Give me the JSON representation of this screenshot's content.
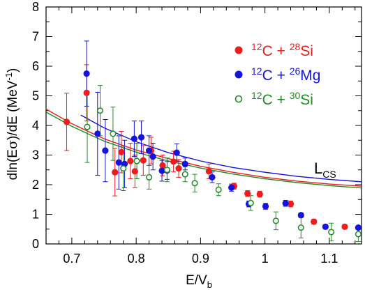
{
  "chart_data": {
    "type": "scatter",
    "xlabel": {
      "main": "E/V",
      "sub": "b"
    },
    "ylabel": {
      "prefix": "dln(E",
      "sigma": "σ",
      "mid": ")/dE  (MeV",
      "sup": "-1",
      "suffix": ")"
    },
    "xlim": [
      0.66,
      1.15
    ],
    "ylim": [
      0,
      8
    ],
    "x_ticks": [
      "0.7",
      "0.8",
      "0.9",
      "1",
      "1.1"
    ],
    "x_tick_values": [
      0.7,
      0.8,
      0.9,
      1.0,
      1.1
    ],
    "y_ticks": [
      "0",
      "1",
      "2",
      "3",
      "4",
      "5",
      "6",
      "7",
      "8"
    ],
    "y_tick_values": [
      0,
      1,
      2,
      3,
      4,
      5,
      6,
      7,
      8
    ],
    "legend_position": "upper-right",
    "series": [
      {
        "name": "12C + 28Si",
        "legend": {
          "m1": "12",
          "a": "C + ",
          "m2": "28",
          "b": "Si"
        },
        "color": "#ee1c1c",
        "marker": "filled-circle",
        "points": [
          {
            "x": 0.692,
            "y": 4.12,
            "err": 0.97
          },
          {
            "x": 0.723,
            "y": 5.1,
            "err": 0.95
          },
          {
            "x": 0.767,
            "y": 2.42,
            "err": 0.8
          },
          {
            "x": 0.777,
            "y": 3.1,
            "err": 0.7
          },
          {
            "x": 0.791,
            "y": 2.8,
            "err": 0.6
          },
          {
            "x": 0.798,
            "y": 2.45,
            "err": 0.55
          },
          {
            "x": 0.811,
            "y": 2.82,
            "err": 0.5
          },
          {
            "x": 0.823,
            "y": 3.15,
            "err": 0.45
          },
          {
            "x": 0.841,
            "y": 2.65,
            "err": 0.35
          },
          {
            "x": 0.858,
            "y": 2.78,
            "err": 0.35
          },
          {
            "x": 0.866,
            "y": 2.55,
            "err": 0.3
          },
          {
            "x": 0.913,
            "y": 2.45,
            "err": 0.25
          },
          {
            "x": 0.952,
            "y": 1.95,
            "err": 0.1
          },
          {
            "x": 0.973,
            "y": 1.7,
            "err": 0.1
          },
          {
            "x": 0.992,
            "y": 1.68,
            "err": 0.1
          },
          {
            "x": 1.04,
            "y": 1.35,
            "err": 0.1
          },
          {
            "x": 1.076,
            "y": 0.75,
            "err": 0.08
          },
          {
            "x": 1.124,
            "y": 0.58,
            "err": 0.07
          }
        ]
      },
      {
        "name": "12C + 26Mg",
        "legend": {
          "m1": "12",
          "a": "C + ",
          "m2": "26",
          "b": "Mg"
        },
        "color": "#1414dc",
        "marker": "filled-circle",
        "points": [
          {
            "x": 0.723,
            "y": 5.75,
            "err": 1.1
          },
          {
            "x": 0.74,
            "y": 3.72,
            "err": 1.4
          },
          {
            "x": 0.752,
            "y": 3.15,
            "err": 1.05
          },
          {
            "x": 0.773,
            "y": 2.75,
            "err": 0.9
          },
          {
            "x": 0.782,
            "y": 2.7,
            "err": 0.8
          },
          {
            "x": 0.797,
            "y": 3.55,
            "err": 0.6
          },
          {
            "x": 0.808,
            "y": 3.6,
            "err": 0.55
          },
          {
            "x": 0.82,
            "y": 3.15,
            "err": 0.5
          },
          {
            "x": 0.826,
            "y": 2.95,
            "err": 0.45
          },
          {
            "x": 0.84,
            "y": 2.47,
            "err": 0.35
          },
          {
            "x": 0.848,
            "y": 2.48,
            "err": 0.3
          },
          {
            "x": 0.863,
            "y": 3.08,
            "err": 0.3
          },
          {
            "x": 0.876,
            "y": 2.7,
            "err": 0.2
          },
          {
            "x": 0.918,
            "y": 2.25,
            "err": 0.18
          },
          {
            "x": 0.948,
            "y": 1.9,
            "err": 0.12
          },
          {
            "x": 0.975,
            "y": 1.35,
            "err": 0.1
          },
          {
            "x": 1.001,
            "y": 1.27,
            "err": 0.1
          },
          {
            "x": 1.032,
            "y": 1.37,
            "err": 0.1
          },
          {
            "x": 1.056,
            "y": 0.97,
            "err": 0.08
          },
          {
            "x": 1.094,
            "y": 0.58,
            "err": 0.07
          },
          {
            "x": 1.145,
            "y": 0.55,
            "err": 0.06
          }
        ]
      },
      {
        "name": "12C + 30Si",
        "legend": {
          "m1": "12",
          "a": "C + ",
          "m2": "30",
          "b": "Si"
        },
        "color": "#1e8c1e",
        "marker": "open-circle",
        "points": [
          {
            "x": 0.724,
            "y": 3.95,
            "err": 1.2
          },
          {
            "x": 0.744,
            "y": 4.5,
            "err": 0.85
          },
          {
            "x": 0.764,
            "y": 3.72,
            "err": 0.9
          },
          {
            "x": 0.78,
            "y": 2.55,
            "err": 0.75
          },
          {
            "x": 0.801,
            "y": 2.8,
            "err": 0.6
          },
          {
            "x": 0.82,
            "y": 2.25,
            "err": 0.4
          },
          {
            "x": 0.848,
            "y": 2.5,
            "err": 0.4
          },
          {
            "x": 0.876,
            "y": 2.35,
            "err": 0.25
          },
          {
            "x": 0.891,
            "y": 2.05,
            "err": 0.3
          },
          {
            "x": 0.928,
            "y": 1.83,
            "err": 0.2
          },
          {
            "x": 0.978,
            "y": 1.38,
            "err": 0.25
          },
          {
            "x": 1.017,
            "y": 0.78,
            "err": 0.3
          },
          {
            "x": 1.056,
            "y": 0.55,
            "err": 0.35
          },
          {
            "x": 1.103,
            "y": 0.4,
            "err": 0.3
          },
          {
            "x": 1.145,
            "y": 0.33,
            "err": 0.25
          }
        ]
      }
    ],
    "curves": [
      {
        "name": "blue-curve",
        "color": "#1414dc",
        "points": [
          [
            0.714,
            4.35
          ],
          [
            0.75,
            3.92
          ],
          [
            0.8,
            3.45
          ],
          [
            0.85,
            3.08
          ],
          [
            0.9,
            2.8
          ],
          [
            0.95,
            2.58
          ],
          [
            1.0,
            2.42
          ],
          [
            1.05,
            2.28
          ],
          [
            1.1,
            2.18
          ],
          [
            1.15,
            2.1
          ]
        ]
      },
      {
        "name": "red-curve",
        "color": "#ee1c1c",
        "points": [
          [
            0.66,
            4.55
          ],
          [
            0.7,
            4.06
          ],
          [
            0.75,
            3.55
          ],
          [
            0.8,
            3.17
          ],
          [
            0.85,
            2.88
          ],
          [
            0.9,
            2.62
          ],
          [
            0.95,
            2.42
          ],
          [
            1.0,
            2.25
          ],
          [
            1.05,
            2.12
          ],
          [
            1.1,
            2.02
          ],
          [
            1.15,
            1.95
          ]
        ]
      },
      {
        "name": "green-curve",
        "color": "#1e8c1e",
        "points": [
          [
            0.66,
            4.45
          ],
          [
            0.7,
            3.97
          ],
          [
            0.75,
            3.47
          ],
          [
            0.8,
            3.1
          ],
          [
            0.85,
            2.8
          ],
          [
            0.9,
            2.56
          ],
          [
            0.95,
            2.36
          ],
          [
            1.0,
            2.2
          ],
          [
            1.05,
            2.07
          ],
          [
            1.1,
            1.97
          ],
          [
            1.15,
            1.89
          ]
        ]
      }
    ],
    "annotations": [
      {
        "name": "lcs-label",
        "main": "L",
        "sub": "CS",
        "x": 1.04,
        "y": 2.95
      }
    ]
  }
}
